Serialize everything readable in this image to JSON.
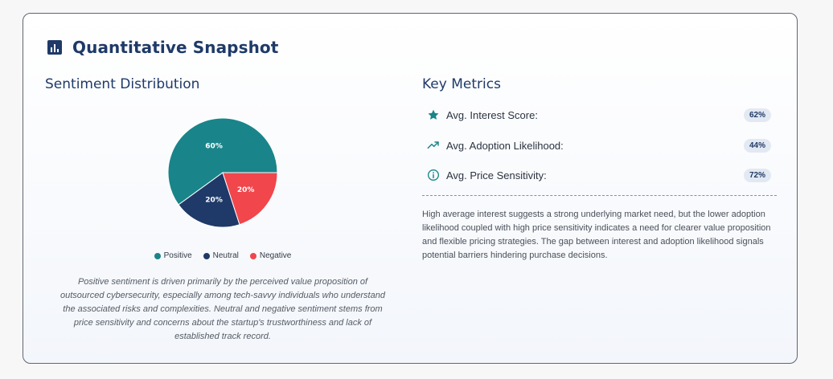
{
  "card": {
    "title": "Quantitative Snapshot",
    "icon": "bar-chart-icon"
  },
  "sentiment": {
    "title": "Sentiment Distribution",
    "caption": "Positive sentiment is driven primarily by the perceived value proposition of outsourced cybersecurity, especially among tech-savvy individuals who understand the associated risks and complexities. Neutral and negative sentiment stems from price sensitivity and concerns about the startup's trustworthiness and lack of established track record."
  },
  "chart_data": {
    "type": "pie",
    "title": "",
    "categories": [
      "Positive",
      "Neutral",
      "Negative"
    ],
    "values": [
      60,
      20,
      20
    ],
    "labels": [
      "60%",
      "20%",
      "20%"
    ],
    "colors": [
      "#19858a",
      "#1f3a68",
      "#f0464c"
    ],
    "legend_position": "bottom"
  },
  "metrics": {
    "title": "Key Metrics",
    "items": [
      {
        "label": "Avg. Interest Score:",
        "value": "62%",
        "icon": "star-icon"
      },
      {
        "label": "Avg. Adoption Likelihood:",
        "value": "44%",
        "icon": "trending-up-icon"
      },
      {
        "label": "Avg. Price Sensitivity:",
        "value": "72%",
        "icon": "info-icon"
      }
    ],
    "summary": "High average interest suggests a strong underlying market need, but the lower adoption likelihood coupled with high price sensitivity indicates a need for clearer value proposition and flexible pricing strategies. The gap between interest and adoption likelihood signals potential barriers hindering purchase decisions."
  },
  "colors": {
    "accent": "#19858a",
    "heading": "#1f3a68",
    "negative": "#f0464c",
    "badge_bg": "#e3e9f2"
  }
}
